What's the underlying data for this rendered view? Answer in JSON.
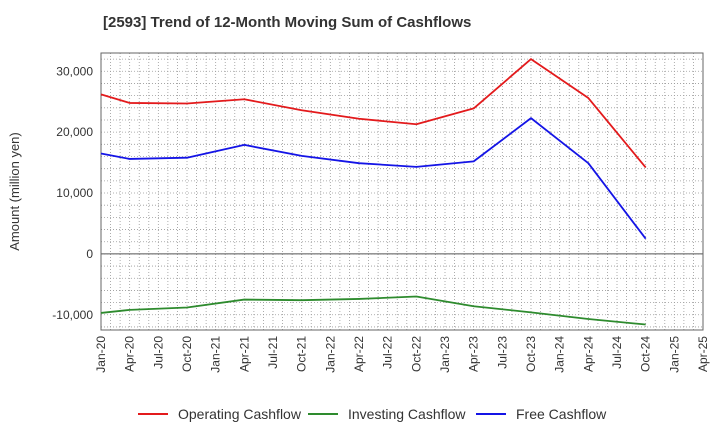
{
  "chart_data": {
    "type": "line",
    "title": "[2593]  Trend of 12-Month Moving Sum of Cashflows",
    "xlabel": "",
    "ylabel": "Amount (million yen)",
    "ylim": [
      -12500,
      33000
    ],
    "yticks": [
      -10000,
      0,
      10000,
      20000,
      30000
    ],
    "ytick_labels": [
      "-10,000",
      "0",
      "10,000",
      "20,000",
      "30,000"
    ],
    "xtick_labels": [
      "Jan-20",
      "Apr-20",
      "Jul-20",
      "Oct-20",
      "Jan-21",
      "Apr-21",
      "Jul-21",
      "Oct-21",
      "Jan-22",
      "Apr-22",
      "Jul-22",
      "Oct-22",
      "Jan-23",
      "Apr-23",
      "Jul-23",
      "Oct-23",
      "Jan-24",
      "Apr-24",
      "Jul-24",
      "Oct-24",
      "Jan-25",
      "Apr-25"
    ],
    "x": [
      "Jan-20",
      "Apr-20",
      "Oct-20",
      "Apr-21",
      "Oct-21",
      "Apr-22",
      "Oct-22",
      "Apr-23",
      "Oct-23",
      "Apr-24",
      "Oct-24"
    ],
    "series": [
      {
        "name": "Operating Cashflow",
        "color": "#e31a1c",
        "values": [
          26200,
          24800,
          24700,
          25400,
          23600,
          22200,
          21300,
          23900,
          32000,
          25600,
          14200
        ]
      },
      {
        "name": "Investing Cashflow",
        "color": "#2e8b2e",
        "values": [
          -9700,
          -9200,
          -8800,
          -7500,
          -7600,
          -7400,
          -7000,
          -8600,
          -9600,
          -10700,
          -11600
        ]
      },
      {
        "name": "Free Cashflow",
        "color": "#1414e6",
        "values": [
          16500,
          15600,
          15800,
          17900,
          16100,
          14900,
          14300,
          15200,
          22300,
          14900,
          2500
        ]
      }
    ],
    "grid": true,
    "legend_position": "bottom"
  }
}
